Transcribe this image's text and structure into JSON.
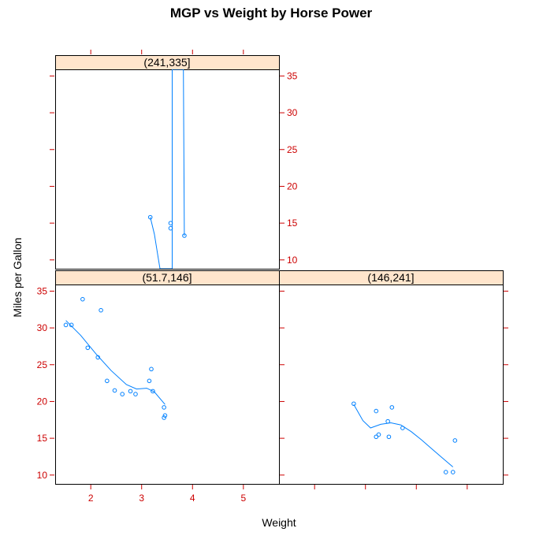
{
  "chart_data": {
    "type": "scatter",
    "title": "MGP vs Weight by Horse Power",
    "xlabel": "Weight",
    "ylabel": "Miles per Gallon",
    "xlim": [
      1.3,
      5.7
    ],
    "ylim": [
      8.8,
      35.9
    ],
    "x_ticks": [
      2,
      3,
      4,
      5
    ],
    "y_ticks": [
      10,
      15,
      20,
      25,
      30,
      35
    ],
    "colors": {
      "points": "#0080ff",
      "ticks": "#cc0000",
      "strip": "#ffe5cc"
    },
    "smooth": "loess",
    "panels": [
      {
        "strip": "(51.7,146]",
        "points": [
          [
            1.51,
            30.4
          ],
          [
            1.62,
            30.4
          ],
          [
            1.84,
            33.9
          ],
          [
            1.94,
            27.3
          ],
          [
            2.14,
            26.0
          ],
          [
            2.2,
            32.4
          ],
          [
            2.32,
            22.8
          ],
          [
            2.47,
            21.5
          ],
          [
            2.62,
            21.0
          ],
          [
            2.78,
            21.4
          ],
          [
            2.88,
            21.0
          ],
          [
            3.15,
            22.8
          ],
          [
            3.19,
            24.4
          ],
          [
            3.22,
            21.4
          ],
          [
            3.44,
            19.2
          ],
          [
            3.44,
            17.8
          ],
          [
            3.46,
            18.1
          ]
        ],
        "curve": [
          [
            1.51,
            31.0
          ],
          [
            1.8,
            29.0
          ],
          [
            2.1,
            26.5
          ],
          [
            2.4,
            24.2
          ],
          [
            2.7,
            22.3
          ],
          [
            2.9,
            21.7
          ],
          [
            3.1,
            21.8
          ],
          [
            3.25,
            21.3
          ],
          [
            3.46,
            19.6
          ]
        ]
      },
      {
        "strip": "(146,241]",
        "points": [
          [
            2.77,
            19.7
          ],
          [
            3.21,
            18.7
          ],
          [
            3.21,
            15.2
          ],
          [
            3.26,
            15.5
          ],
          [
            3.44,
            17.3
          ],
          [
            3.46,
            15.2
          ],
          [
            3.52,
            19.2
          ],
          [
            3.73,
            16.4
          ],
          [
            4.76,
            14.7
          ],
          [
            4.58,
            10.4
          ],
          [
            4.72,
            10.4
          ]
        ],
        "curve": [
          [
            2.77,
            19.6
          ],
          [
            2.95,
            17.4
          ],
          [
            3.1,
            16.4
          ],
          [
            3.3,
            16.9
          ],
          [
            3.5,
            17.1
          ],
          [
            3.7,
            16.8
          ],
          [
            3.9,
            15.9
          ],
          [
            4.1,
            14.8
          ],
          [
            4.3,
            13.6
          ],
          [
            4.5,
            12.4
          ],
          [
            4.72,
            11.1
          ]
        ]
      },
      {
        "strip": "(241,335]",
        "points": [
          [
            3.17,
            15.8
          ],
          [
            3.57,
            15.0
          ],
          [
            3.57,
            14.3
          ],
          [
            3.84,
            13.3
          ]
        ],
        "curve": [
          [
            3.17,
            15.8
          ],
          [
            3.25,
            13.5
          ],
          [
            3.32,
            10.5
          ],
          [
            3.36,
            8.8
          ],
          [
            3.6,
            8.8
          ],
          [
            3.6,
            35.9
          ],
          [
            3.82,
            35.9
          ],
          [
            3.84,
            13.3
          ]
        ]
      }
    ]
  }
}
